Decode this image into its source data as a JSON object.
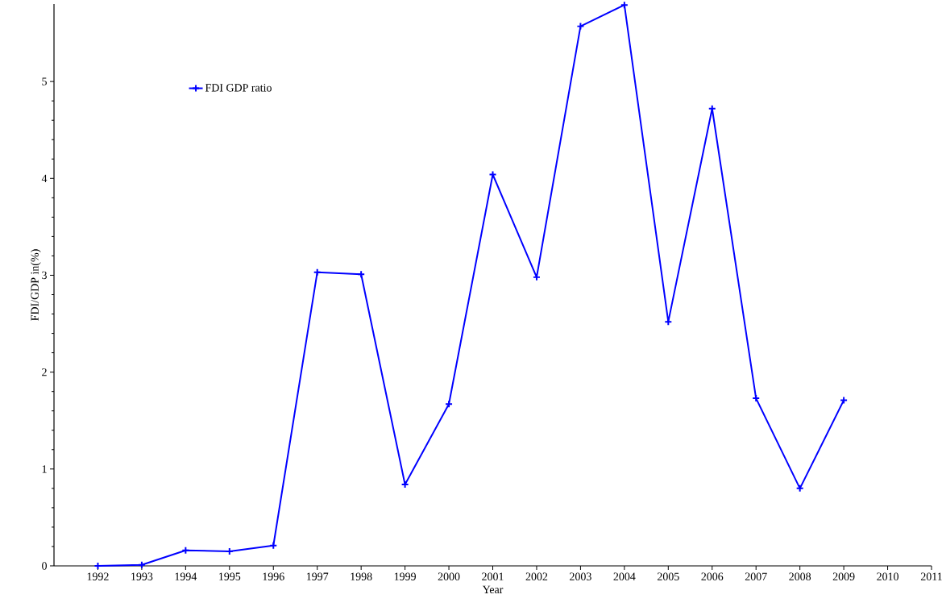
{
  "chart_data": {
    "type": "line",
    "xlabel": "Year",
    "ylabel": "FDI/GDP in(%)",
    "x": [
      1992,
      1993,
      1994,
      1995,
      1996,
      1997,
      1998,
      1999,
      2000,
      2001,
      2002,
      2003,
      2004,
      2005,
      2006,
      2007,
      2008,
      2009
    ],
    "series": [
      {
        "name": "FDI GDP ratio",
        "color": "#0000ff",
        "values": [
          0.0,
          0.01,
          0.16,
          0.15,
          0.21,
          3.03,
          3.01,
          0.84,
          1.67,
          4.04,
          2.98,
          5.57,
          5.79,
          2.52,
          4.72,
          1.73,
          0.8,
          1.71
        ]
      }
    ],
    "xlim": [
      1991,
      2011
    ],
    "ylim": [
      0,
      5.8
    ],
    "xticks": [
      1992,
      1993,
      1994,
      1995,
      1996,
      1997,
      1998,
      1999,
      2000,
      2001,
      2002,
      2003,
      2004,
      2005,
      2006,
      2007,
      2008,
      2009,
      2010,
      2011
    ],
    "yticks": [
      0,
      1,
      2,
      3,
      4,
      5
    ],
    "legend": "top left",
    "marker": "cross",
    "line_style": "solid",
    "grid": false
  }
}
